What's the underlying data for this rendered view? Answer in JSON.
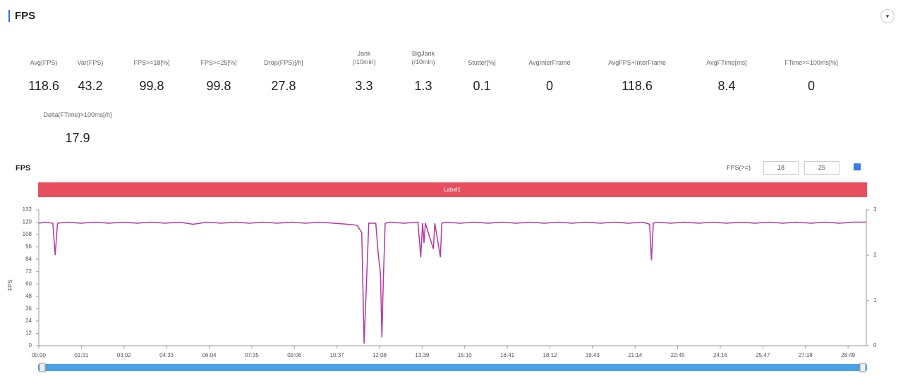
{
  "header": {
    "title": "FPS"
  },
  "metrics": [
    {
      "label": "Avg(FPS)",
      "value": "118.6"
    },
    {
      "label": "Var(FPS)",
      "value": "43.2"
    },
    {
      "label": "FPS>=18[%]",
      "value": "99.8"
    },
    {
      "label": "FPS>=25[%]",
      "value": "99.8"
    },
    {
      "label": "Drop(FPS)[/h]",
      "value": "27.8"
    },
    {
      "label": "Jank\n(/10min)",
      "value": "3.3"
    },
    {
      "label": "BigJank\n(/10min)",
      "value": "1.3"
    },
    {
      "label": "Stutter[%]",
      "value": "0.1"
    },
    {
      "label": "AvgInterFrame",
      "value": "0"
    },
    {
      "label": "AvgFPS+InterFrame",
      "value": "118.6"
    },
    {
      "label": "AvgFTime[ms]",
      "value": "8.4"
    },
    {
      "label": "FTime>=100ms[%]",
      "value": "0"
    },
    {
      "label": "Delta(FTime)>100ms[/h]",
      "value": "17.9"
    }
  ],
  "filter": {
    "label": "FPS(>=)",
    "inputs": [
      "18",
      "25"
    ]
  },
  "chart_data": {
    "type": "line",
    "title": "FPS",
    "ylabel": "FPS",
    "x": [
      0,
      15,
      30,
      35,
      40,
      60,
      90,
      120,
      150,
      180,
      210,
      240,
      270,
      300,
      330,
      360,
      390,
      420,
      450,
      480,
      510,
      540,
      570,
      600,
      630,
      660,
      680,
      690,
      695,
      700,
      705,
      720,
      725,
      730,
      733,
      736,
      740,
      750,
      780,
      810,
      816,
      820,
      823,
      826,
      843,
      846,
      858,
      861,
      870,
      900,
      930,
      960,
      990,
      1020,
      1050,
      1080,
      1110,
      1140,
      1170,
      1200,
      1230,
      1260,
      1290,
      1305,
      1309,
      1313,
      1320,
      1350,
      1380,
      1410,
      1440,
      1470,
      1500,
      1530,
      1560,
      1590,
      1620,
      1650,
      1680,
      1710,
      1740,
      1768
    ],
    "series": [
      {
        "name": "Label1",
        "color": "#b5389f",
        "values": [
          119,
          120,
          119,
          88,
          119,
          120,
          119,
          120,
          119,
          120,
          119,
          120,
          119,
          120,
          118,
          120,
          119,
          120,
          119,
          120,
          119,
          120,
          119,
          120,
          119,
          118,
          117,
          110,
          2,
          60,
          119,
          119,
          90,
          70,
          8,
          62,
          119,
          120,
          119,
          120,
          86,
          119,
          100,
          119,
          94,
          119,
          86,
          119,
          120,
          119,
          120,
          119,
          120,
          119,
          120,
          119,
          120,
          119,
          120,
          119,
          120,
          119,
          120,
          118,
          83,
          119,
          120,
          119,
          120,
          119,
          120,
          119,
          120,
          119,
          120,
          119,
          120,
          119,
          120,
          119,
          120,
          120
        ]
      }
    ],
    "xlim": [
      0,
      1768
    ],
    "xticks": [
      {
        "value": 0,
        "label": "00:00"
      },
      {
        "value": 91,
        "label": "01:31"
      },
      {
        "value": 182,
        "label": "03:02"
      },
      {
        "value": 273,
        "label": "04:33"
      },
      {
        "value": 364,
        "label": "06:04"
      },
      {
        "value": 455,
        "label": "07:35"
      },
      {
        "value": 546,
        "label": "09:06"
      },
      {
        "value": 637,
        "label": "10:37"
      },
      {
        "value": 728,
        "label": "12:08"
      },
      {
        "value": 819,
        "label": "13:39"
      },
      {
        "value": 910,
        "label": "15:10"
      },
      {
        "value": 1001,
        "label": "16:41"
      },
      {
        "value": 1092,
        "label": "18:12"
      },
      {
        "value": 1183,
        "label": "19:43"
      },
      {
        "value": 1274,
        "label": "21:14"
      },
      {
        "value": 1365,
        "label": "22:45"
      },
      {
        "value": 1456,
        "label": "24:16"
      },
      {
        "value": 1547,
        "label": "25:47"
      },
      {
        "value": 1638,
        "label": "27:18"
      },
      {
        "value": 1729,
        "label": "28:49"
      }
    ],
    "ylim": [
      0,
      132
    ],
    "yticks": [
      0,
      12,
      24,
      36,
      48,
      60,
      72,
      84,
      96,
      108,
      120,
      132
    ],
    "y2lim": [
      0,
      3
    ],
    "y2ticks": [
      0,
      1,
      2,
      3
    ]
  }
}
